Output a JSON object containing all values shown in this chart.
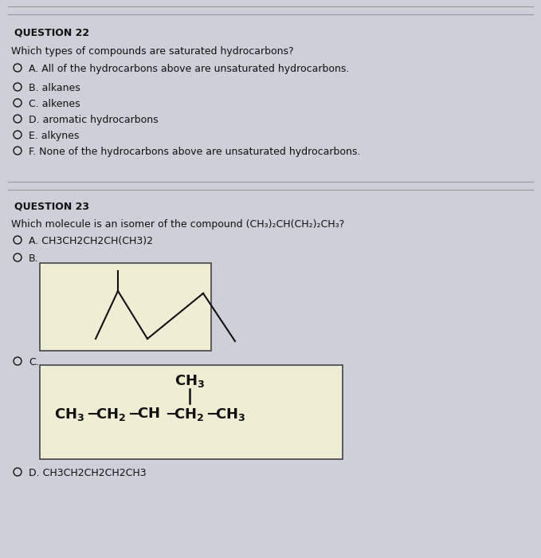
{
  "bg_color": "#cdd0d8",
  "title_q22": "QUESTION 22",
  "q22_question": "Which types of compounds are saturated hydrocarbons?",
  "q22_options": [
    "A. All of the hydrocarbons above are unsaturated hydrocarbons.",
    "B. alkanes",
    "C. alkenes",
    "D. aromatic hydrocarbons",
    "E. alkynes",
    "F. None of the hydrocarbons above are unsaturated hydrocarbons."
  ],
  "title_q23": "QUESTION 23",
  "q23_question": "Which molecule is an isomer of the compound (CH₃)₂CH(CH₂)₂CH₃?",
  "q23_optA": "A. CH3CH2CH2CH(CH3)2",
  "q23_optD": "D. CH3CH2CH2CH2CH3",
  "separator_color": "#999999",
  "text_color": "#111111",
  "box_color": "#e8e8c8",
  "box_edge_color": "#444444"
}
